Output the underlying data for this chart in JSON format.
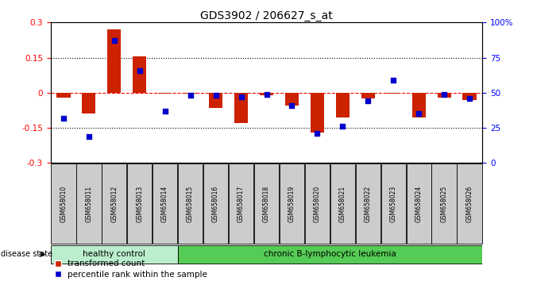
{
  "title": "GDS3902 / 206627_s_at",
  "samples": [
    "GSM658010",
    "GSM658011",
    "GSM658012",
    "GSM658013",
    "GSM658014",
    "GSM658015",
    "GSM658016",
    "GSM658017",
    "GSM658018",
    "GSM658019",
    "GSM658020",
    "GSM658021",
    "GSM658022",
    "GSM658023",
    "GSM658024",
    "GSM658025",
    "GSM658026"
  ],
  "red_bars": [
    -0.02,
    -0.09,
    0.27,
    0.155,
    -0.005,
    -0.005,
    -0.065,
    -0.13,
    -0.01,
    -0.055,
    -0.17,
    -0.105,
    -0.025,
    -0.005,
    -0.105,
    -0.02,
    -0.03
  ],
  "blue_squares_pct": [
    32,
    19,
    87,
    66,
    37,
    48,
    48,
    47,
    49,
    41,
    21,
    26,
    44,
    59,
    35,
    49,
    46
  ],
  "ylim_left": [
    -0.3,
    0.3
  ],
  "ylim_right": [
    0,
    100
  ],
  "yticks_left": [
    -0.3,
    -0.15,
    0,
    0.15,
    0.3
  ],
  "ytick_labels_left": [
    "-0.3",
    "-0.15",
    "0",
    "0.15",
    "0.3"
  ],
  "yticks_right": [
    0,
    25,
    50,
    75,
    100
  ],
  "ytick_labels_right": [
    "0",
    "25",
    "50",
    "75",
    "100%"
  ],
  "bar_color": "#cc2200",
  "blue_color": "#0000cc",
  "healthy_color": "#bbeecc",
  "leukemia_color": "#55cc55",
  "sample_box_color": "#cccccc",
  "bar_width": 0.55,
  "healthy_label": "healthy control",
  "leukemia_label": "chronic B-lymphocytic leukemia",
  "disease_state_label": "disease state",
  "legend_red": "transformed count",
  "legend_blue": "percentile rank within the sample",
  "n_healthy": 5,
  "blue_sq_size": 18
}
